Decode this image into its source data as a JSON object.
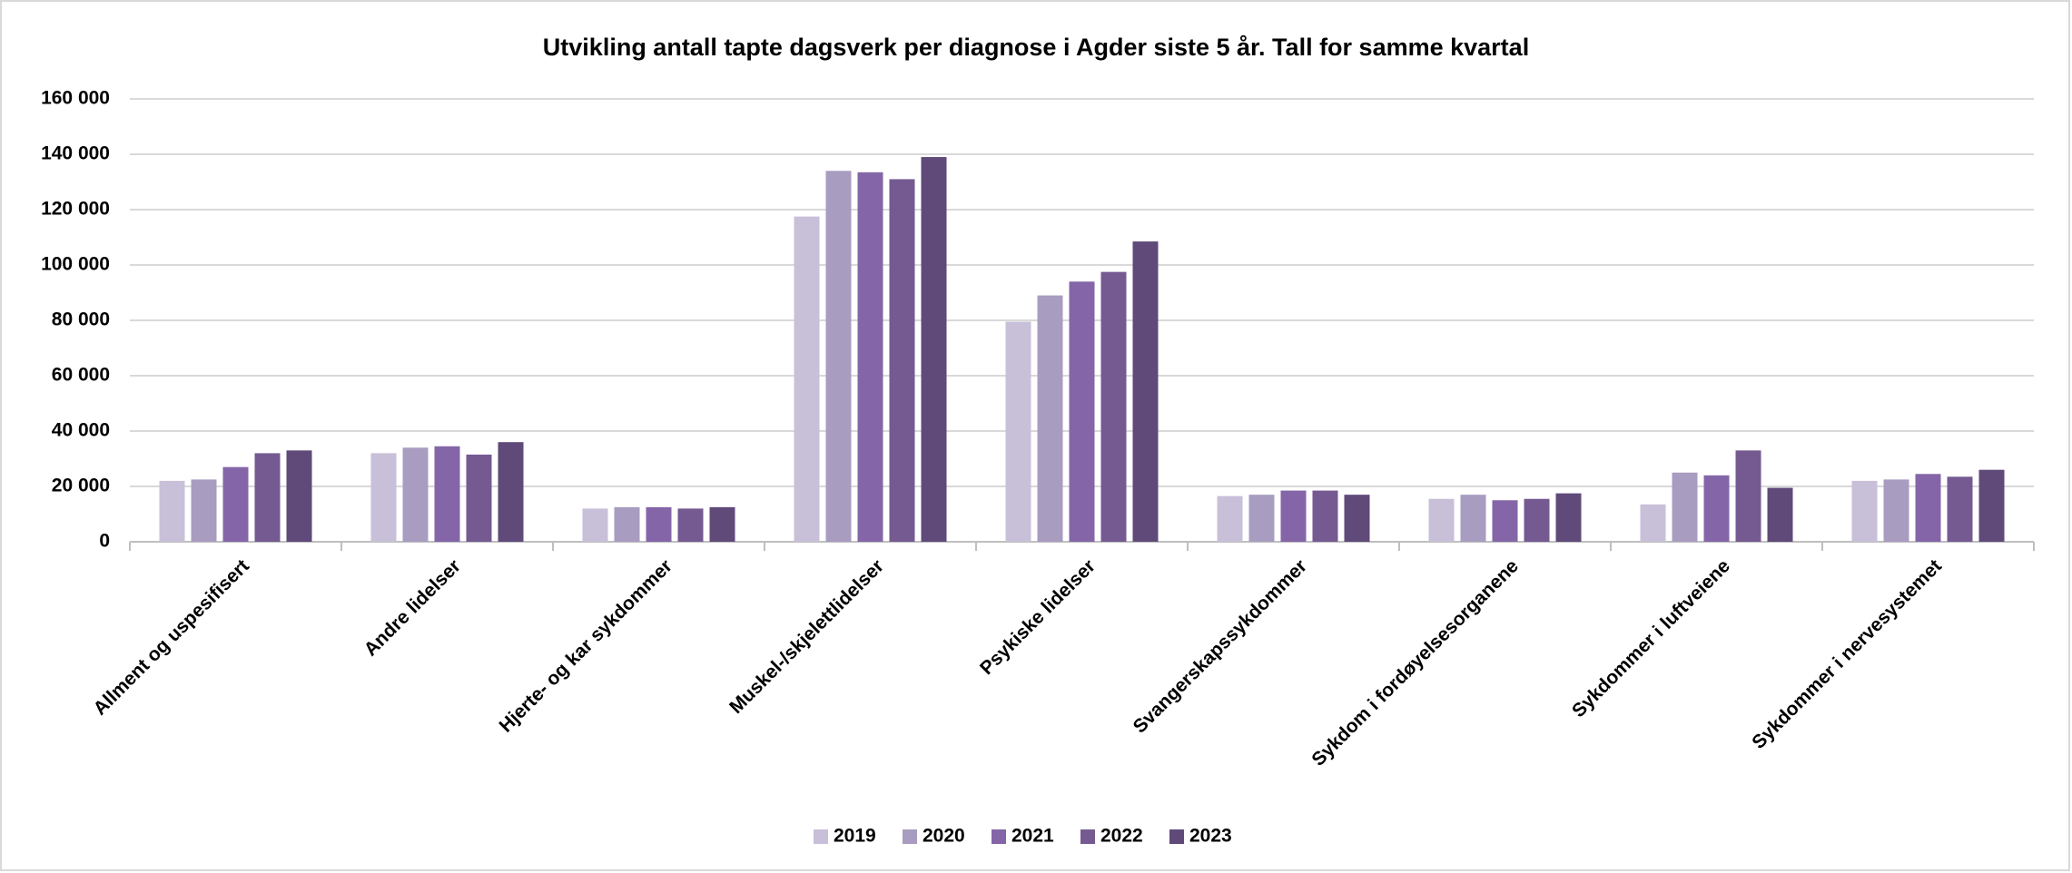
{
  "chart_data": {
    "type": "bar",
    "title": "Utvikling antall tapte dagsverk per diagnose i Agder siste 5 år. Tall for samme kvartal",
    "categories": [
      "Allment og uspesifisert",
      "Andre lidelser",
      "Hjerte- og kar sykdommer",
      "Muskel-/skjelettlidelser",
      "Psykiske lidelser",
      "Svangerskapssykdommer",
      "Sykdom i fordøyelsesorganene",
      "Sykdommer i luftveiene",
      "Sykdommer i nervesystemet"
    ],
    "series": [
      {
        "name": "2019",
        "color": "#c8bfd8",
        "values": [
          22000,
          32000,
          12000,
          117500,
          79500,
          16500,
          15500,
          13500,
          22000
        ]
      },
      {
        "name": "2020",
        "color": "#a89cc0",
        "values": [
          22500,
          34000,
          12500,
          134000,
          89000,
          17000,
          17000,
          25000,
          22500
        ]
      },
      {
        "name": "2021",
        "color": "#8466a8",
        "values": [
          27000,
          34500,
          12500,
          133500,
          94000,
          18500,
          15000,
          24000,
          24500
        ]
      },
      {
        "name": "2022",
        "color": "#755a92",
        "values": [
          32000,
          31500,
          12000,
          131000,
          97500,
          18500,
          15500,
          33000,
          23500
        ]
      },
      {
        "name": "2023",
        "color": "#5f4a7a",
        "values": [
          33000,
          36000,
          12500,
          139000,
          108500,
          17000,
          17500,
          19500,
          26000
        ]
      }
    ],
    "ylim": [
      0,
      160000
    ],
    "yticks": [
      0,
      {
        "value": 20000,
        "label": "20 000"
      },
      {
        "value": 40000,
        "label": "40 000"
      },
      {
        "value": 60000,
        "label": "60 000"
      },
      {
        "value": 80000,
        "label": "80 000"
      },
      {
        "value": 100000,
        "label": "100 000"
      },
      {
        "value": 120000,
        "label": "120 000"
      },
      {
        "value": 140000,
        "label": "140 000"
      },
      {
        "value": 160000,
        "label": "160 000"
      }
    ],
    "grid": true,
    "legend": "bottom"
  }
}
